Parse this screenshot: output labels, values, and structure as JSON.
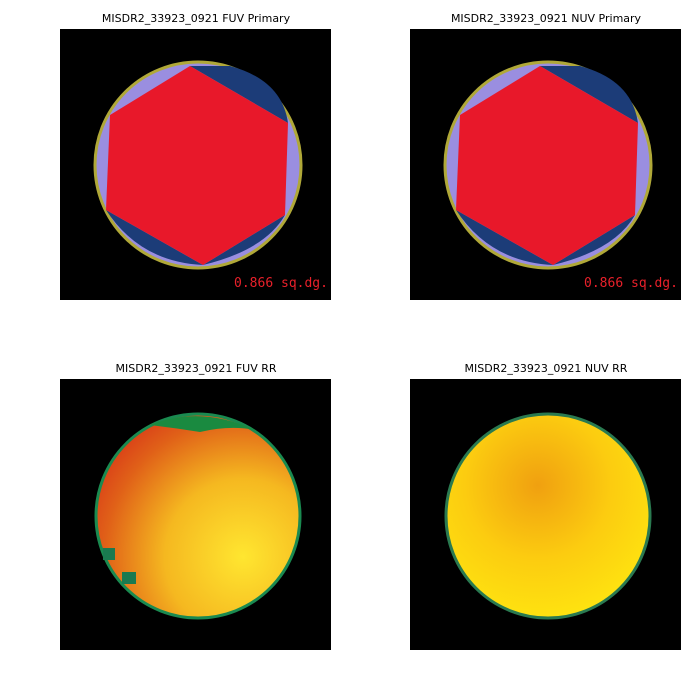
{
  "panels": [
    {
      "title": "MISDR2_33923_0921 FUV Primary",
      "label": "0.866 sq.dg."
    },
    {
      "title": "MISDR2_33923_0921 NUV Primary",
      "label": "0.866 sq.dg."
    },
    {
      "title": "MISDR2_33923_0921 FUV RR"
    },
    {
      "title": "MISDR2_33923_0921 NUV RR"
    }
  ]
}
